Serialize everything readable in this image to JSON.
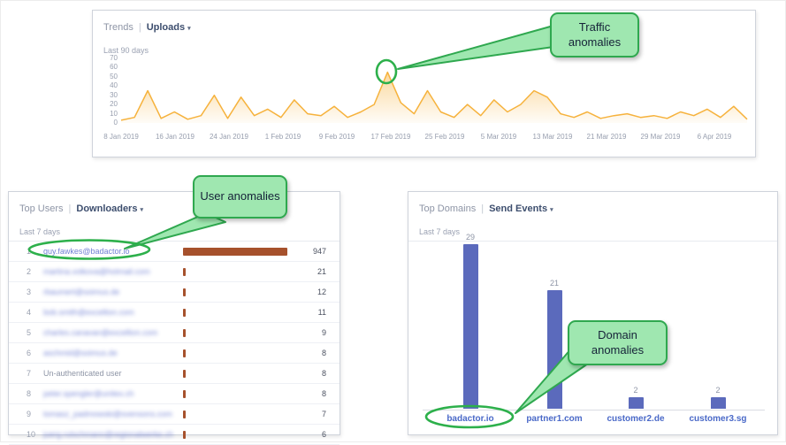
{
  "colors": {
    "callout_fill": "#9fe7b0",
    "callout_border": "#2fa84f",
    "callout_text": "#152238",
    "annotation_ring": "#2db04b",
    "line_series": "#f6b23c",
    "users_bar": "#a6512c",
    "domains_bar": "#5b6abc",
    "link_blue": "#7180d4",
    "domain_link": "#4a69c8",
    "header_dark": "#3d4e6e"
  },
  "annotations": {
    "traffic": "Traffic anomalies",
    "user": "User anomalies",
    "domain": "Domain anomalies"
  },
  "trends_panel": {
    "title": "Trends",
    "separator": "|",
    "selected": "Uploads",
    "chevron": "▾",
    "subtitle": "Last 90 days"
  },
  "users_panel": {
    "title": "Top Users",
    "separator": "|",
    "selected": "Downloaders",
    "chevron": "▾",
    "subtitle": "Last 7 days"
  },
  "domains_panel": {
    "title": "Top Domains",
    "separator": "|",
    "selected": "Send Events",
    "chevron": "▾",
    "subtitle": "Last 7 days"
  },
  "chart_data": [
    {
      "type": "line",
      "title": "Trends — Uploads",
      "timeframe": "Last 90 days",
      "ylim": [
        0,
        70
      ],
      "yticks": [
        70,
        60,
        50,
        40,
        30,
        20,
        10,
        0
      ],
      "x_tick_labels": [
        "8 Jan 2019",
        "16 Jan 2019",
        "24 Jan 2019",
        "1 Feb 2019",
        "9 Feb 2019",
        "17 Feb 2019",
        "25 Feb 2019",
        "5 Mar 2019",
        "13 Mar 2019",
        "21 Mar 2019",
        "29 Mar 2019",
        "6 Apr 2019"
      ],
      "values": [
        3,
        6,
        35,
        5,
        12,
        4,
        8,
        30,
        5,
        28,
        8,
        15,
        6,
        25,
        10,
        8,
        18,
        6,
        12,
        20,
        55,
        22,
        10,
        35,
        12,
        6,
        20,
        8,
        25,
        12,
        20,
        35,
        28,
        10,
        6,
        12,
        5,
        8,
        10,
        6,
        8,
        5,
        12,
        8,
        15,
        6,
        18,
        4
      ],
      "series_color": "#f6b23c",
      "annotation": "Spike of ~55 uploads near 17 Feb 2019 circled as a traffic anomaly"
    },
    {
      "type": "table",
      "title": "Top Users — Downloaders",
      "timeframe": "Last 7 days",
      "columns": [
        "rank",
        "user",
        "downloads-bar",
        "downloads"
      ],
      "max_value": 947,
      "bar_color": "#a6512c",
      "rows": [
        {
          "rank": "1",
          "name": "guy.fawkes@badactor.io",
          "value": 947,
          "link": true,
          "blurred": false
        },
        {
          "rank": "2",
          "name": "martina.volkova@hotmail.com",
          "value": 21,
          "link": true,
          "blurred": true
        },
        {
          "rank": "3",
          "name": "rbaumert@soimus.de",
          "value": 12,
          "link": true,
          "blurred": true
        },
        {
          "rank": "4",
          "name": "bob.smith@excellion.com",
          "value": 11,
          "link": true,
          "blurred": true
        },
        {
          "rank": "5",
          "name": "charles.canavan@excellion.com",
          "value": 9,
          "link": true,
          "blurred": true
        },
        {
          "rank": "6",
          "name": "aschmid@soimus.de",
          "value": 8,
          "link": true,
          "blurred": true
        },
        {
          "rank": "7",
          "name": "Un-authenticated user",
          "value": 8,
          "link": false,
          "blurred": false
        },
        {
          "rank": "8",
          "name": "peter.spengler@unitex.ch",
          "value": 8,
          "link": true,
          "blurred": true
        },
        {
          "rank": "9",
          "name": "tomasz_padmowski@svensons.com",
          "value": 7,
          "link": true,
          "blurred": true
        },
        {
          "rank": "10",
          "name": "juerg.rutschmann@regionalwerke.ch",
          "value": 6,
          "link": true,
          "blurred": true
        }
      ],
      "annotation": "Top downloader guy.fawkes@badactor.io circled as a user anomaly"
    },
    {
      "type": "bar",
      "title": "Top Domains — Send Events",
      "timeframe": "Last 7 days",
      "categories": [
        "badactor.io",
        "partner1.com",
        "customer2.de",
        "customer3.sg"
      ],
      "values": [
        29,
        21,
        2,
        2
      ],
      "ylim": [
        0,
        30
      ],
      "bar_color": "#5b6abc",
      "annotation": "badactor.io circled as a domain anomaly"
    }
  ]
}
